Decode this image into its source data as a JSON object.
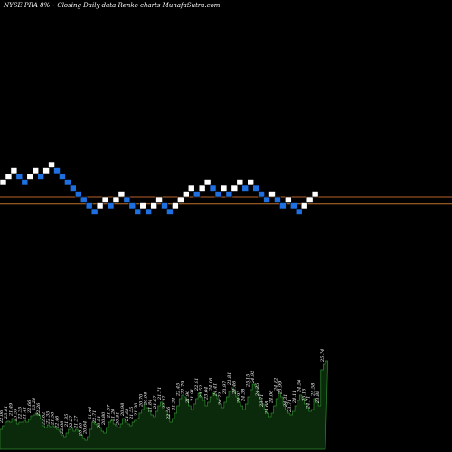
{
  "chart_data": {
    "type": "renko",
    "title": "NYSE PRA 8%~  Closing Daily data  Renko  charts MunafaSutra.com",
    "colors": {
      "background": "#000000",
      "up_brick": "#ffffff",
      "down_brick": "#1e6fe0",
      "reference_line_1": "#b8622a",
      "reference_line_2": "#c0722d",
      "volume_fill": "#0b2a0b",
      "volume_stroke": "#2e8b2e",
      "text": "#ffffff"
    },
    "bricks": [
      {
        "dir": "up",
        "level": 7
      },
      {
        "dir": "up",
        "level": 8
      },
      {
        "dir": "up",
        "level": 9
      },
      {
        "dir": "down",
        "level": 8
      },
      {
        "dir": "down",
        "level": 7
      },
      {
        "dir": "up",
        "level": 8
      },
      {
        "dir": "up",
        "level": 9
      },
      {
        "dir": "down",
        "level": 8
      },
      {
        "dir": "up",
        "level": 9
      },
      {
        "dir": "up",
        "level": 10
      },
      {
        "dir": "down",
        "level": 9
      },
      {
        "dir": "down",
        "level": 8
      },
      {
        "dir": "down",
        "level": 7
      },
      {
        "dir": "down",
        "level": 6
      },
      {
        "dir": "down",
        "level": 5
      },
      {
        "dir": "down",
        "level": 4
      },
      {
        "dir": "down",
        "level": 3
      },
      {
        "dir": "down",
        "level": 2
      },
      {
        "dir": "up",
        "level": 3
      },
      {
        "dir": "up",
        "level": 4
      },
      {
        "dir": "down",
        "level": 3
      },
      {
        "dir": "up",
        "level": 4
      },
      {
        "dir": "up",
        "level": 5
      },
      {
        "dir": "down",
        "level": 4
      },
      {
        "dir": "down",
        "level": 3
      },
      {
        "dir": "down",
        "level": 2
      },
      {
        "dir": "up",
        "level": 3
      },
      {
        "dir": "down",
        "level": 2
      },
      {
        "dir": "up",
        "level": 3
      },
      {
        "dir": "up",
        "level": 4
      },
      {
        "dir": "down",
        "level": 3
      },
      {
        "dir": "down",
        "level": 2
      },
      {
        "dir": "up",
        "level": 3
      },
      {
        "dir": "up",
        "level": 4
      },
      {
        "dir": "up",
        "level": 5
      },
      {
        "dir": "up",
        "level": 6
      },
      {
        "dir": "down",
        "level": 5
      },
      {
        "dir": "up",
        "level": 6
      },
      {
        "dir": "up",
        "level": 7
      },
      {
        "dir": "down",
        "level": 6
      },
      {
        "dir": "down",
        "level": 5
      },
      {
        "dir": "up",
        "level": 6
      },
      {
        "dir": "down",
        "level": 5
      },
      {
        "dir": "up",
        "level": 6
      },
      {
        "dir": "up",
        "level": 7
      },
      {
        "dir": "down",
        "level": 6
      },
      {
        "dir": "up",
        "level": 7
      },
      {
        "dir": "down",
        "level": 6
      },
      {
        "dir": "down",
        "level": 5
      },
      {
        "dir": "down",
        "level": 4
      },
      {
        "dir": "up",
        "level": 5
      },
      {
        "dir": "down",
        "level": 4
      },
      {
        "dir": "down",
        "level": 3
      },
      {
        "dir": "up",
        "level": 4
      },
      {
        "dir": "down",
        "level": 3
      },
      {
        "dir": "down",
        "level": 2
      },
      {
        "dir": "up",
        "level": 3
      },
      {
        "dir": "up",
        "level": 4
      },
      {
        "dir": "up",
        "level": 5
      }
    ],
    "reference_levels": [
      4.5,
      3.3
    ],
    "volume": [
      22,
      26,
      30,
      31,
      30,
      34,
      32,
      28,
      30,
      30,
      32,
      30,
      33,
      37,
      38,
      40,
      38,
      34,
      26,
      24,
      27,
      25,
      26,
      24,
      22,
      20,
      16,
      14,
      18,
      22,
      24,
      20,
      22,
      20,
      16,
      12,
      10,
      14,
      22,
      30,
      28,
      26,
      24,
      20,
      18,
      24,
      30,
      32,
      28,
      26,
      24,
      28,
      34,
      30,
      28,
      26,
      30,
      32,
      34,
      40,
      44,
      50,
      46,
      42,
      38,
      36,
      42,
      48,
      52,
      48,
      42,
      38,
      30,
      34,
      40,
      48,
      56,
      60,
      58,
      54,
      48,
      44,
      50,
      56,
      62,
      58,
      54,
      48,
      52,
      58,
      62,
      60,
      56,
      50,
      46,
      52,
      58,
      64,
      68,
      64,
      58,
      52,
      48,
      44,
      50,
      58,
      66,
      72,
      70,
      64,
      56,
      50,
      44,
      40,
      36,
      40,
      48,
      56,
      62,
      58,
      50,
      44,
      40,
      38,
      42,
      48,
      54,
      60,
      56,
      50,
      46,
      42,
      44,
      56,
      52,
      48,
      88,
      94,
      98
    ],
    "volume_labels": [
      "22.06",
      "23.81",
      "21.49",
      "23.55",
      "22.35",
      "21.41",
      "22.66",
      "23.24",
      "22.26",
      "22.82",
      "22.35",
      "21.58",
      "22.46",
      "22.68",
      "21.85",
      "22.27",
      "21.37",
      "20.46",
      "20.64",
      "21.44",
      "22.71",
      "20.51",
      "20.80",
      "21.57",
      "21.20",
      "20.81",
      "20.98",
      "21.62",
      "21.55",
      "21.30",
      "20.70",
      "20.98",
      "21.84",
      "21.67",
      "21.71",
      "22.37",
      "22.56",
      "21.34",
      "22.45",
      "22.79",
      "21.90",
      "21.91",
      "22.91",
      "23.52",
      "23.64",
      "24.06",
      "24.41",
      "24.72",
      "23.97",
      "23.81",
      "24.46",
      "24.93",
      "24.38",
      "25.15",
      "24.92",
      "24.25",
      "23.71",
      "23.68",
      "24.06",
      "24.82",
      "23.99",
      "24.31",
      "23.71",
      "24.11",
      "24.56",
      "25.16",
      "24.71",
      "25.58",
      "23.88",
      "25.74"
    ]
  }
}
